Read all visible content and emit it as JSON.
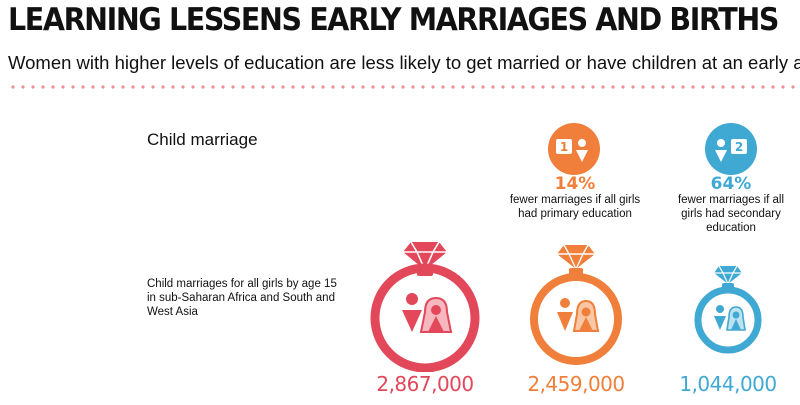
{
  "header": {
    "title": "LEARNING LESSENS EARLY MARRIAGES AND BIRTHS",
    "subtitle": "Women with higher levels of education are less likely to get married or have children at an early age"
  },
  "section": {
    "label": "Child marriage",
    "row_description": "Child marriages for all girls by age 15 in sub-Saharan Africa and South and West Asia"
  },
  "colors": {
    "red": "#e2475a",
    "orange": "#ef7f3a",
    "blue": "#3fa9d4",
    "divider": "#f08d96"
  },
  "scenarios": [
    {
      "id": "baseline",
      "value": "2,867,000",
      "color": "#e2475a"
    },
    {
      "id": "primary",
      "badge_number": "1",
      "percent": "14%",
      "description_lines": [
        "fewer marriages if all girls",
        "had primary education"
      ],
      "value": "2,459,000",
      "color": "#ef7f3a"
    },
    {
      "id": "secondary",
      "badge_number": "2",
      "percent": "64%",
      "description_lines": [
        "fewer marriages if all",
        "girls had secondary",
        "education"
      ],
      "value": "1,044,000",
      "color": "#3fa9d4"
    }
  ]
}
